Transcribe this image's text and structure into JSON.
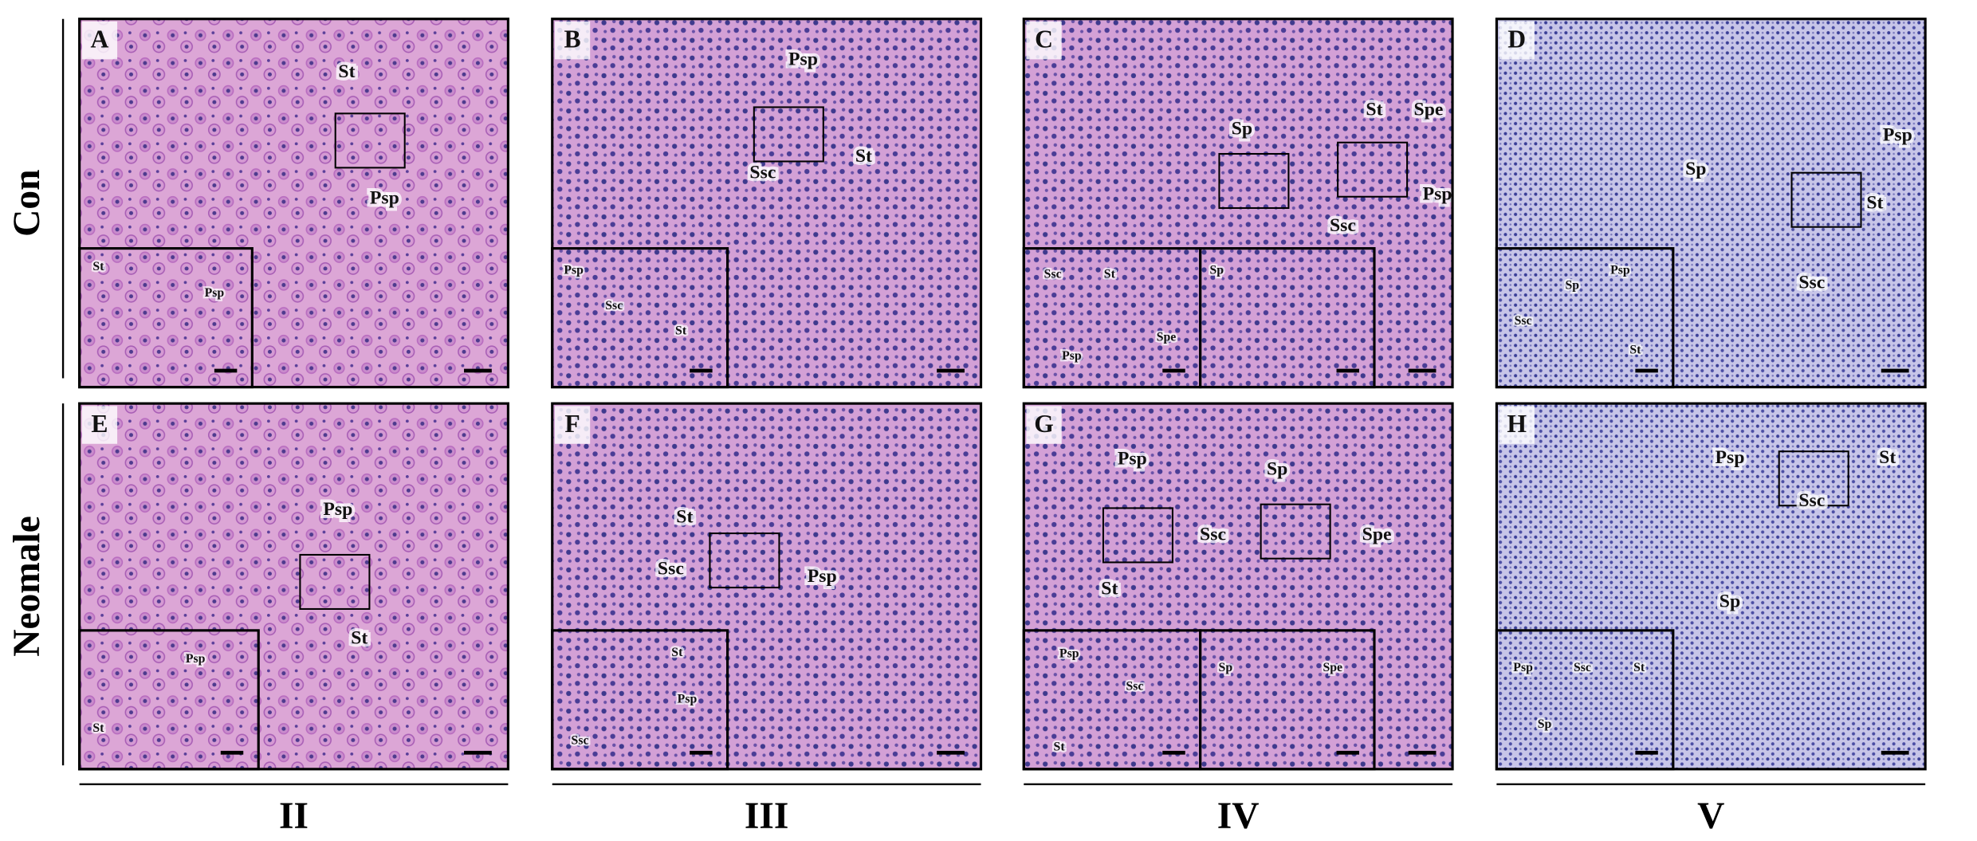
{
  "row_labels": [
    "Con",
    "Neomale"
  ],
  "column_labels": [
    "II",
    "III",
    "IV",
    "V"
  ],
  "panels": [
    {
      "letter": "A",
      "labels": [
        "St",
        "Psp"
      ],
      "insets": [
        [
          "St",
          "Psp"
        ]
      ]
    },
    {
      "letter": "B",
      "labels": [
        "Psp",
        "St",
        "Ssc"
      ],
      "insets": [
        [
          "Psp",
          "Ssc",
          "St"
        ]
      ]
    },
    {
      "letter": "C",
      "labels": [
        "Spe",
        "St",
        "Sp",
        "Psp",
        "Ssc"
      ],
      "insets": [
        [
          "Ssc",
          "St",
          "Spe",
          "Psp"
        ],
        [
          "Sp"
        ]
      ]
    },
    {
      "letter": "D",
      "labels": [
        "Psp",
        "Sp",
        "St",
        "Ssc"
      ],
      "insets": [
        [
          "Sp",
          "Psp",
          "Ssc",
          "St"
        ]
      ]
    },
    {
      "letter": "E",
      "labels": [
        "Psp",
        "St"
      ],
      "insets": [
        [
          "Psp",
          "St"
        ]
      ]
    },
    {
      "letter": "F",
      "labels": [
        "St",
        "Ssc",
        "Psp"
      ],
      "insets": [
        [
          "St",
          "Psp",
          "Ssc"
        ]
      ]
    },
    {
      "letter": "G",
      "labels": [
        "Psp",
        "Sp",
        "Ssc",
        "Spe",
        "St"
      ],
      "insets": [
        [
          "Psp",
          "Ssc",
          "St"
        ],
        [
          "Sp",
          "Spe"
        ]
      ]
    },
    {
      "letter": "H",
      "labels": [
        "Psp",
        "St",
        "Ssc",
        "Sp"
      ],
      "insets": [
        [
          "Psp",
          "Ssc",
          "St",
          "Sp"
        ]
      ]
    }
  ]
}
